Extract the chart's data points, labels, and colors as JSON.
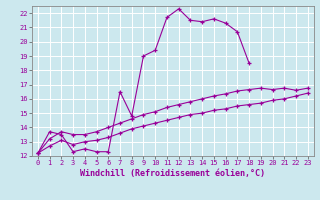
{
  "background_color": "#cce8ee",
  "grid_color": "#ffffff",
  "line_color": "#990099",
  "marker": "+",
  "curve1": {
    "x": [
      0,
      1,
      2,
      3,
      4,
      5,
      6,
      7,
      8,
      9,
      10,
      11,
      12,
      13,
      14,
      15,
      16,
      17,
      18
    ],
    "y": [
      12.2,
      13.7,
      13.5,
      12.3,
      12.5,
      12.3,
      12.3,
      16.5,
      14.8,
      19.0,
      19.4,
      21.7,
      22.3,
      21.5,
      21.4,
      21.6,
      21.3,
      20.7,
      18.5
    ]
  },
  "curve2": {
    "x": [
      0,
      1,
      2,
      3,
      4,
      5,
      6,
      7,
      8,
      9,
      10,
      11,
      12,
      13,
      14,
      15,
      16,
      17,
      18,
      19,
      20,
      21,
      22,
      23
    ],
    "y": [
      12.2,
      13.2,
      13.7,
      13.5,
      13.5,
      13.7,
      14.0,
      14.3,
      14.6,
      14.9,
      15.1,
      15.4,
      15.6,
      15.8,
      16.0,
      16.2,
      16.35,
      16.55,
      16.65,
      16.75,
      16.65,
      16.75,
      16.6,
      16.75
    ]
  },
  "curve3": {
    "x": [
      0,
      1,
      2,
      3,
      4,
      5,
      6,
      7,
      8,
      9,
      10,
      11,
      12,
      13,
      14,
      15,
      16,
      17,
      18,
      19,
      20,
      21,
      22,
      23
    ],
    "y": [
      12.2,
      12.7,
      13.1,
      12.8,
      13.0,
      13.1,
      13.3,
      13.6,
      13.9,
      14.1,
      14.3,
      14.5,
      14.7,
      14.9,
      15.0,
      15.2,
      15.3,
      15.5,
      15.6,
      15.7,
      15.9,
      16.0,
      16.2,
      16.4
    ]
  },
  "xlim": [
    -0.5,
    23.5
  ],
  "ylim": [
    12,
    22.5
  ],
  "yticks": [
    12,
    13,
    14,
    15,
    16,
    17,
    18,
    19,
    20,
    21,
    22
  ],
  "xticks": [
    0,
    1,
    2,
    3,
    4,
    5,
    6,
    7,
    8,
    9,
    10,
    11,
    12,
    13,
    14,
    15,
    16,
    17,
    18,
    19,
    20,
    21,
    22,
    23
  ],
  "xlabel": "Windchill (Refroidissement éolien,°C)",
  "xlabel_fontsize": 6.0,
  "tick_fontsize": 5.0,
  "linewidth": 0.8
}
